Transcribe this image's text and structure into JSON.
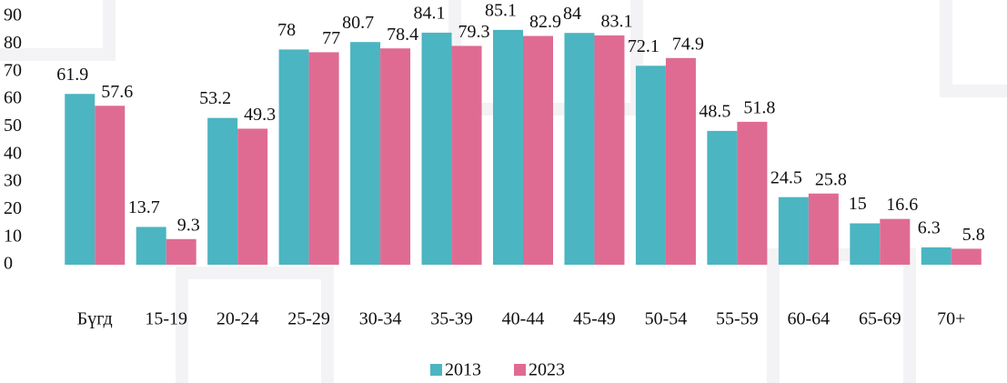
{
  "chart_data": {
    "type": "bar",
    "categories": [
      "Бүгд",
      "15-19",
      "20-24",
      "25-29",
      "30-34",
      "35-39",
      "40-44",
      "45-49",
      "50-54",
      "55-59",
      "60-64",
      "65-69",
      "70+"
    ],
    "series": [
      {
        "name": "2013",
        "color": "#4bb5c1",
        "values": [
          61.9,
          13.7,
          53.2,
          78,
          80.7,
          84.1,
          85.1,
          84,
          72.1,
          48.5,
          24.5,
          15,
          6.3
        ]
      },
      {
        "name": "2023",
        "color": "#df6b93",
        "values": [
          57.6,
          9.3,
          49.3,
          77,
          78.4,
          79.3,
          82.9,
          83.1,
          74.9,
          51.8,
          25.8,
          16.6,
          5.8
        ]
      }
    ],
    "ylim": [
      0,
      90
    ],
    "yticks": [
      0,
      10,
      20,
      30,
      40,
      50,
      60,
      70,
      80,
      90
    ],
    "grid": false,
    "legend": "bottom"
  }
}
